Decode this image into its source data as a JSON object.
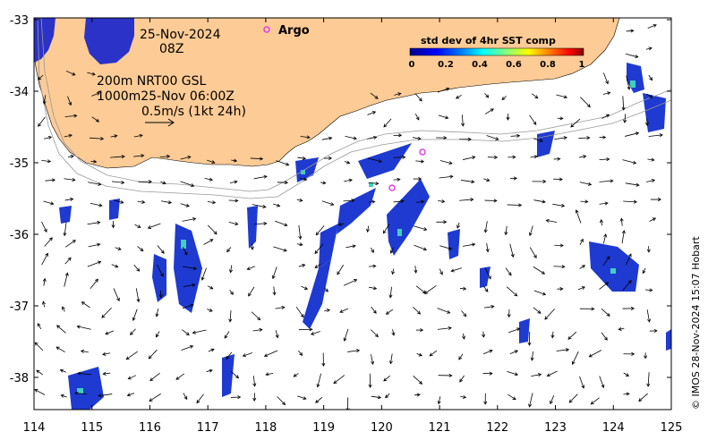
{
  "map": {
    "date_line": "25-Nov-2024",
    "hour_line": "08Z",
    "depth_line_1": "200m  NRT00 GSL",
    "depth_line_2": "1000m25-Nov 06:00Z",
    "scale_label": "0.5m/s (1kt 24h)",
    "argo_label": "Argo",
    "copyright": "© IMOS 28-Nov-2024 15:07 Hobart",
    "colorbar": {
      "title": "std dev of 4hr SST comp",
      "ticks": [
        "0",
        "0.2",
        "0.4",
        "0.6",
        "0.8",
        "1"
      ],
      "colors": [
        "#00008b",
        "#0000ff",
        "#0080ff",
        "#00ffff",
        "#80ff80",
        "#ffff00",
        "#ff8000",
        "#ff0000",
        "#800000"
      ]
    },
    "x_ticks": [
      "114",
      "115",
      "116",
      "117",
      "118",
      "119",
      "120",
      "121",
      "122",
      "123",
      "124",
      "125"
    ],
    "y_ticks": [
      "-33",
      "-34",
      "-35",
      "-36",
      "-37",
      "-38"
    ],
    "land_color": "#fdcb95",
    "argo_color": "#e040e0"
  }
}
